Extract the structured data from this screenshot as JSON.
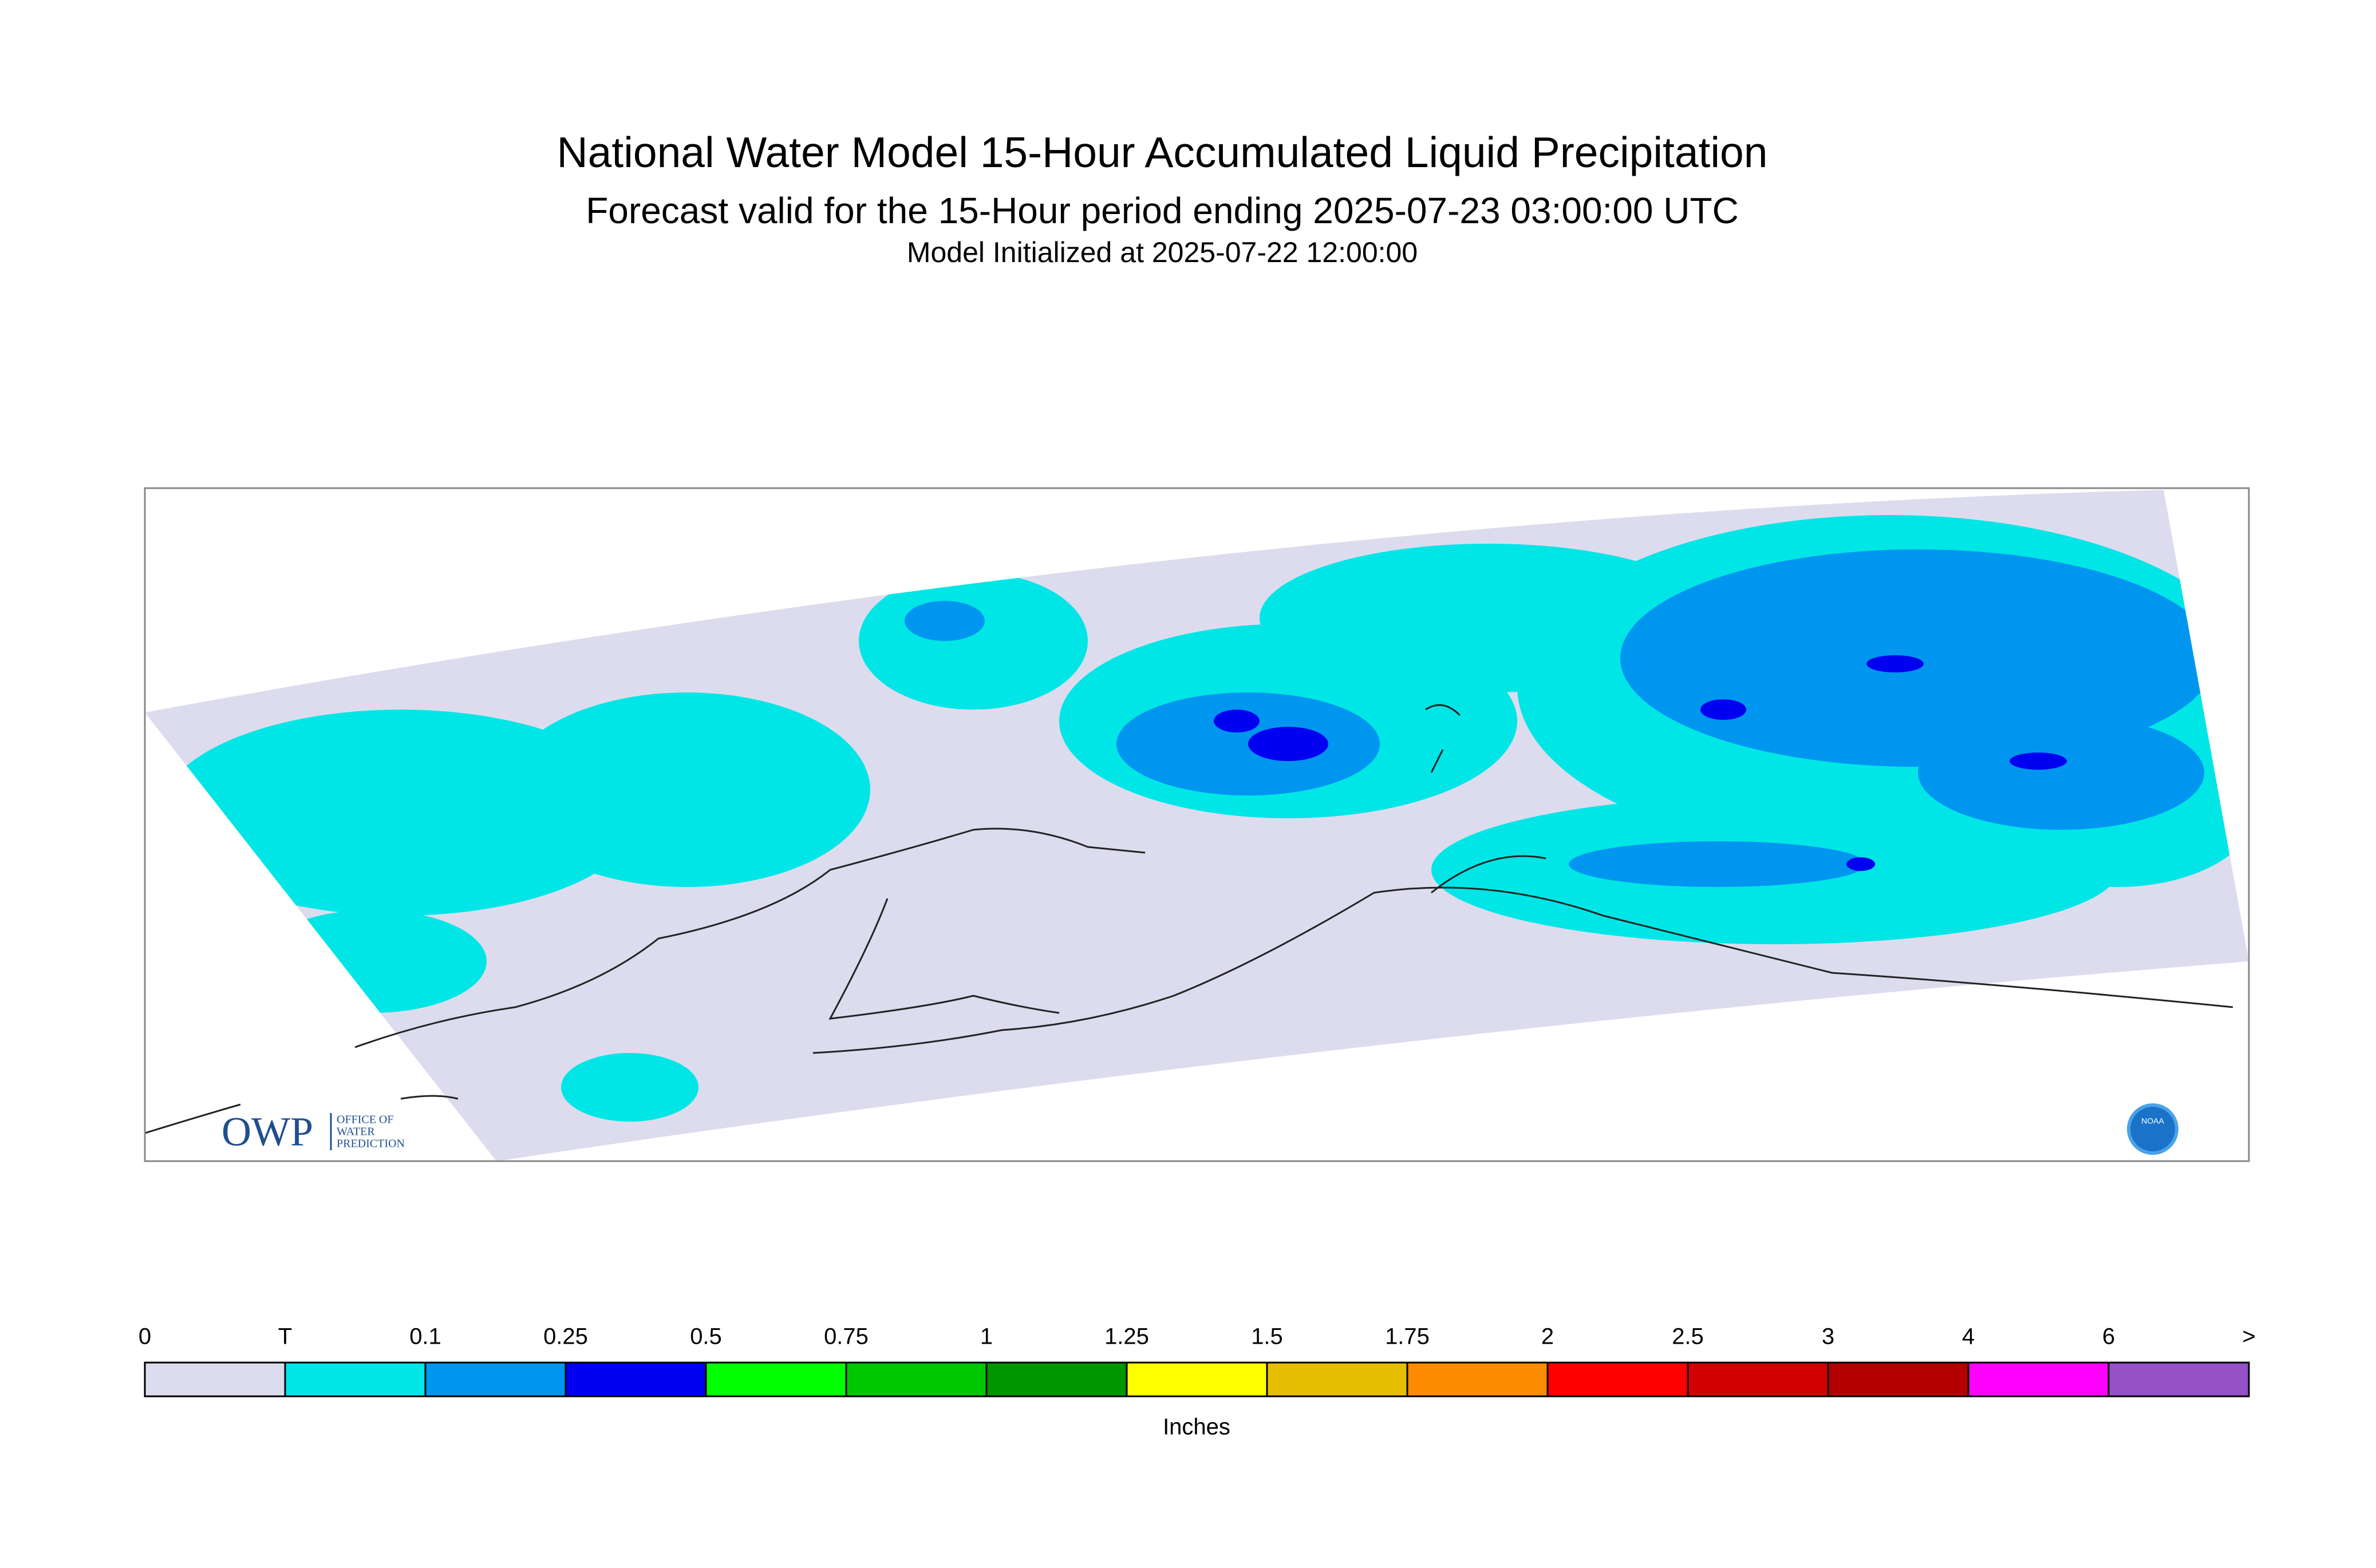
{
  "header": {
    "title": "National Water Model 15-Hour Accumulated Liquid Precipitation",
    "subtitle": "Forecast valid for the 15-Hour period ending 2025-07-23 03:00:00 UTC",
    "initialized": "Model Initialized at 2025-07-22 12:00:00"
  },
  "legend": {
    "labels": [
      "0",
      "T",
      "0.1",
      "0.25",
      "0.5",
      "0.75",
      "1",
      "1.25",
      "1.5",
      "1.75",
      "2",
      "2.5",
      "3",
      "4",
      "6",
      ">"
    ],
    "colors": [
      "#dcdcee",
      "#00e6e6",
      "#0096f0",
      "#0000f0",
      "#00ff00",
      "#00c800",
      "#009600",
      "#ffff00",
      "#e6be00",
      "#ff8c00",
      "#ff0000",
      "#d20000",
      "#b40000",
      "#ff00ff",
      "#9650c8"
    ],
    "unit": "Inches"
  },
  "logos": {
    "owp": "OWP",
    "owp_text": [
      "OFFICE OF",
      "WATER",
      "PREDICTION"
    ],
    "noaa": "NOAA"
  }
}
